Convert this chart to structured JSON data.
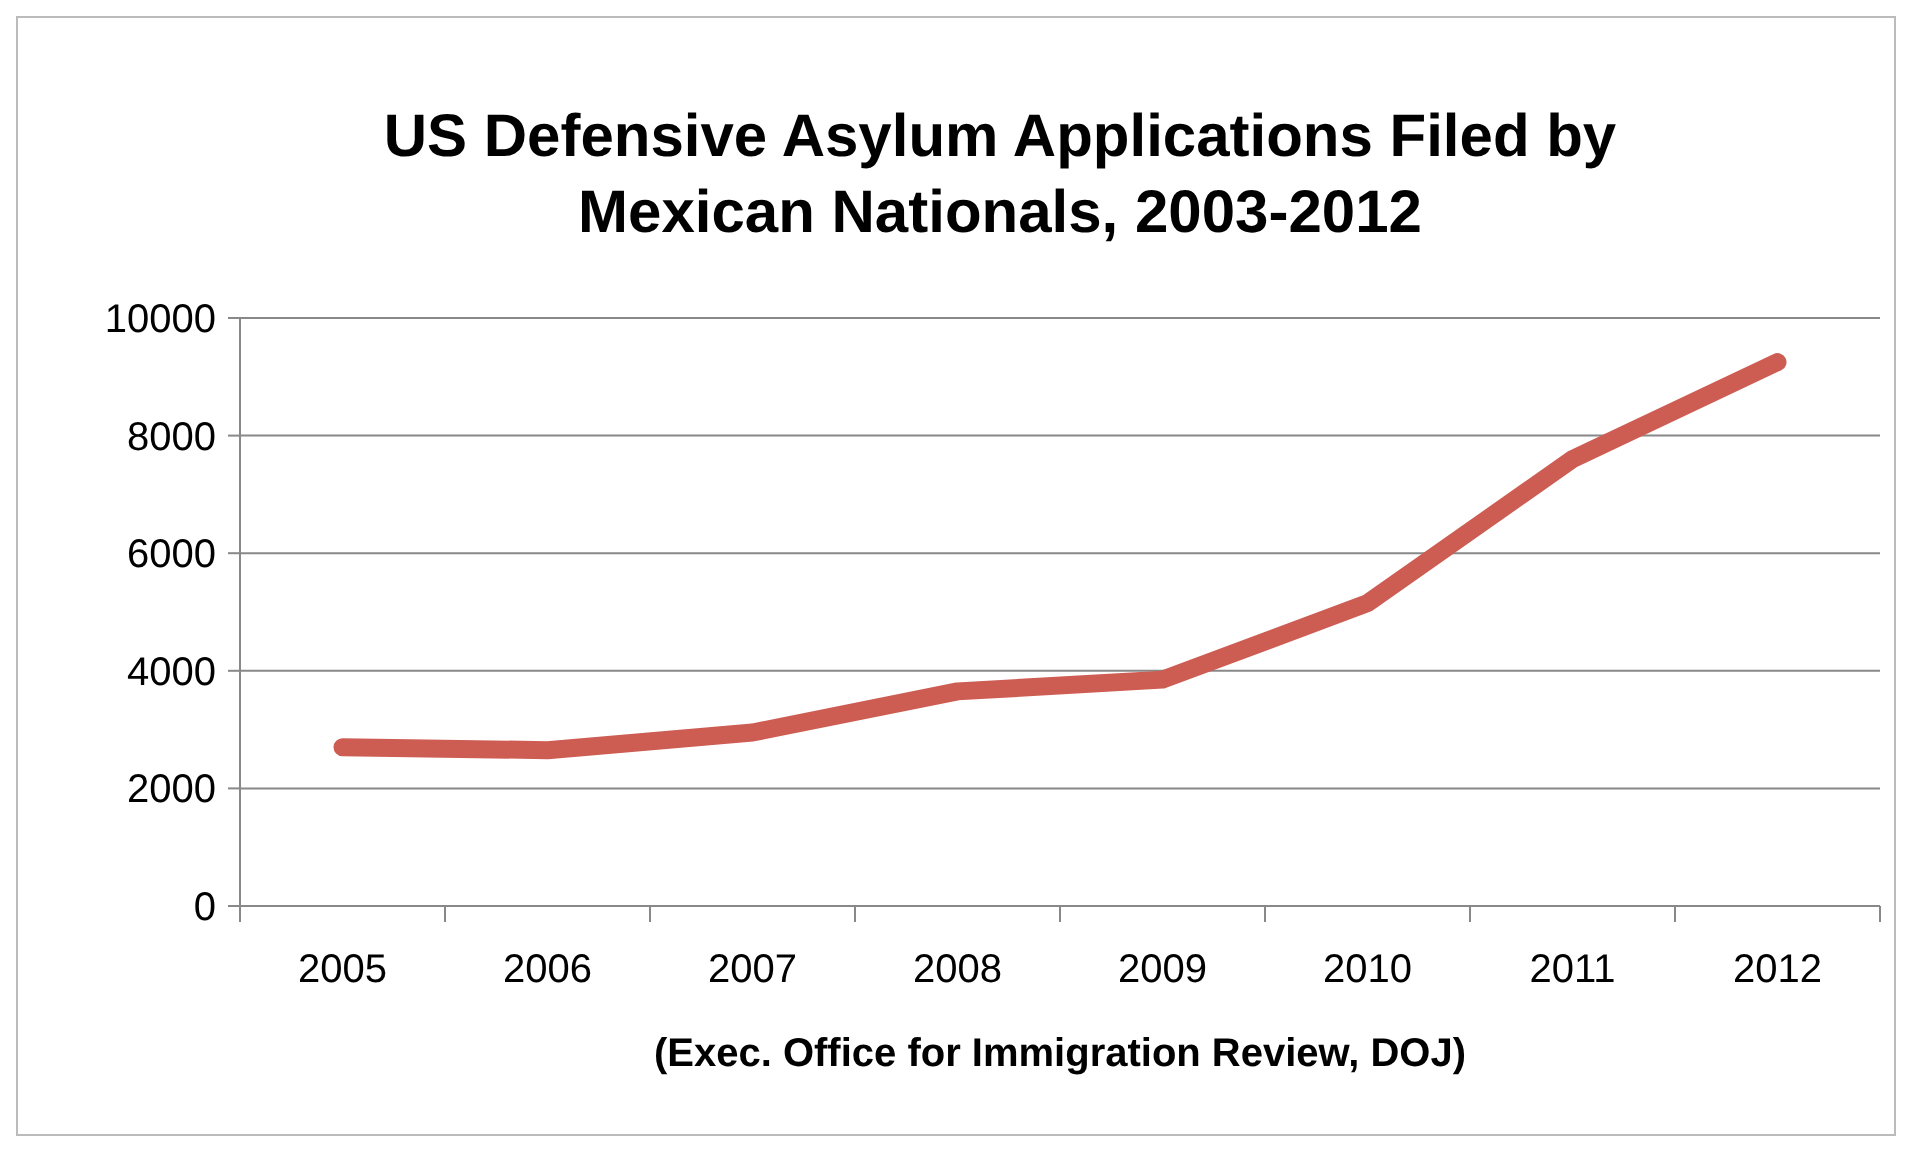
{
  "chart_data": {
    "type": "line",
    "title": "US Defensive Asylum Applications Filed by Mexican Nationals, 2003-2012",
    "xlabel": "(Exec. Office for Immigration Review, DOJ)",
    "categories": [
      "2005",
      "2006",
      "2007",
      "2008",
      "2009",
      "2010",
      "2011",
      "2012"
    ],
    "series": [
      {
        "color": "#cd5c52",
        "values": [
          2700,
          2650,
          2950,
          3650,
          3850,
          5150,
          7600,
          9250
        ]
      }
    ],
    "ylim": [
      0,
      10000
    ],
    "yticks": [
      0,
      2000,
      4000,
      6000,
      8000,
      10000
    ],
    "grid": "y",
    "marker": "none",
    "line_style": "solid"
  }
}
